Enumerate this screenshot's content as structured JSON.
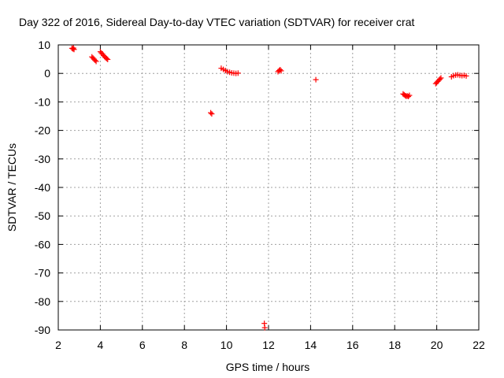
{
  "chart_data": {
    "type": "scatter",
    "title": "Day 322 of 2016, Sidereal Day-to-day VTEC variation (SDTVAR) for receiver crat",
    "xlabel": "GPS time / hours",
    "ylabel": "SDTVAR / TECUs",
    "xlim": [
      2,
      22
    ],
    "ylim": [
      -90,
      10
    ],
    "xticks": [
      2,
      4,
      6,
      8,
      10,
      12,
      14,
      16,
      18,
      20,
      22
    ],
    "yticks": [
      10,
      0,
      -10,
      -20,
      -30,
      -40,
      -50,
      -60,
      -70,
      -80,
      -90
    ],
    "xtick_labels": [
      "2",
      "4",
      "6",
      "8",
      "10",
      "12",
      "14",
      "16",
      "18",
      "20",
      "22"
    ],
    "ytick_labels": [
      "10",
      "0",
      "-10",
      "-20",
      "-30",
      "-40",
      "-50",
      "-60",
      "-70",
      "-80",
      "-90"
    ],
    "grid": true,
    "marker": "+",
    "color": "#ff0000",
    "series": [
      {
        "name": "SDTVAR",
        "points": [
          [
            2.65,
            8.8
          ],
          [
            2.7,
            8.6
          ],
          [
            2.75,
            8.4
          ],
          [
            2.72,
            8.9
          ],
          [
            3.6,
            5.8
          ],
          [
            3.65,
            5.4
          ],
          [
            3.7,
            5.0
          ],
          [
            3.75,
            4.6
          ],
          [
            3.8,
            4.2
          ],
          [
            4.0,
            7.6
          ],
          [
            4.05,
            7.2
          ],
          [
            4.1,
            6.8
          ],
          [
            4.15,
            6.3
          ],
          [
            4.2,
            5.9
          ],
          [
            4.25,
            5.5
          ],
          [
            4.3,
            5.2
          ],
          [
            4.35,
            4.9
          ],
          [
            9.25,
            -13.8
          ],
          [
            9.3,
            -14.2
          ],
          [
            9.75,
            1.8
          ],
          [
            9.85,
            1.4
          ],
          [
            9.95,
            1.0
          ],
          [
            10.05,
            0.6
          ],
          [
            10.15,
            0.4
          ],
          [
            10.25,
            0.2
          ],
          [
            10.35,
            0.1
          ],
          [
            10.45,
            0.0
          ],
          [
            10.55,
            0.1
          ],
          [
            12.45,
            0.6
          ],
          [
            12.5,
            1.0
          ],
          [
            12.55,
            1.3
          ],
          [
            12.6,
            0.9
          ],
          [
            14.25,
            -2.2
          ],
          [
            11.8,
            -87.7
          ],
          [
            11.82,
            -89.2
          ],
          [
            18.4,
            -7.2
          ],
          [
            18.45,
            -7.5
          ],
          [
            18.5,
            -7.8
          ],
          [
            18.55,
            -8.0
          ],
          [
            18.6,
            -7.9
          ],
          [
            18.65,
            -8.1
          ],
          [
            18.7,
            -7.7
          ],
          [
            19.95,
            -3.6
          ],
          [
            20.0,
            -3.2
          ],
          [
            20.05,
            -2.8
          ],
          [
            20.1,
            -2.4
          ],
          [
            20.15,
            -2.0
          ],
          [
            20.2,
            -1.6
          ],
          [
            20.7,
            -1.2
          ],
          [
            20.8,
            -0.8
          ],
          [
            20.9,
            -0.6
          ],
          [
            21.0,
            -0.5
          ],
          [
            21.1,
            -0.7
          ],
          [
            21.2,
            -0.8
          ],
          [
            21.3,
            -0.7
          ],
          [
            21.4,
            -0.9
          ]
        ]
      }
    ]
  }
}
